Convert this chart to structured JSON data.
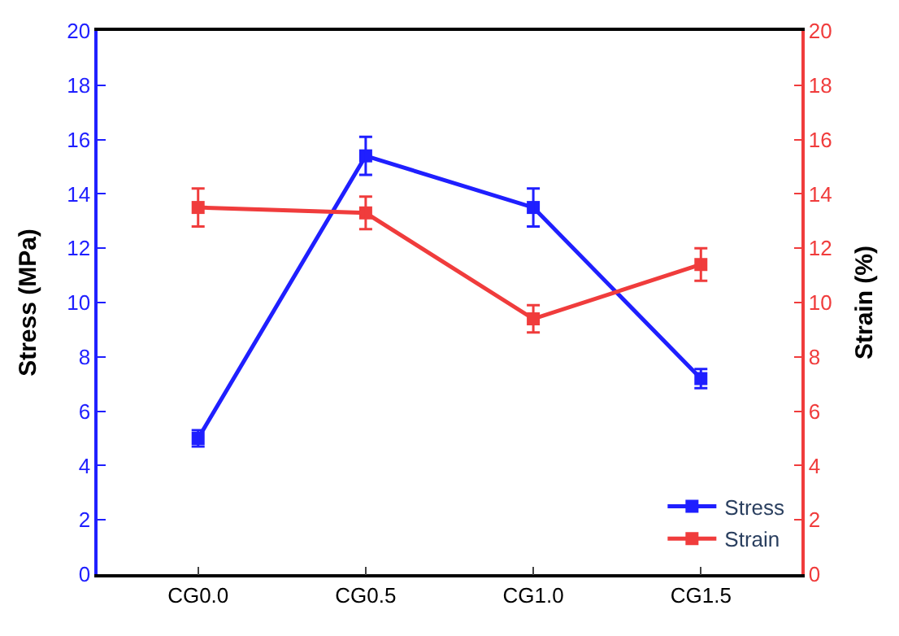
{
  "chart_data": {
    "type": "line",
    "categories": [
      "CG0.0",
      "CG0.5",
      "CG1.0",
      "CG1.5"
    ],
    "ylabel": "Stress (MPa)",
    "y2label": "Strain (%)",
    "ylim": [
      0,
      20
    ],
    "yticks": [
      0,
      2,
      4,
      6,
      8,
      10,
      12,
      14,
      16,
      18,
      20
    ],
    "y2lim": [
      0,
      20
    ],
    "y2ticks": [
      0,
      2,
      4,
      6,
      8,
      10,
      12,
      14,
      16,
      18,
      20
    ],
    "series": [
      {
        "name": "Stress",
        "color": "#1f1fff",
        "values": [
          5.0,
          15.4,
          13.5,
          7.2
        ],
        "errors": [
          0.3,
          0.7,
          0.7,
          0.35
        ]
      },
      {
        "name": "Strain",
        "color": "#f03c3c",
        "axis": "y2",
        "values": [
          13.5,
          13.3,
          9.4,
          11.4
        ],
        "errors": [
          0.7,
          0.6,
          0.5,
          0.6
        ]
      }
    ],
    "marker": "square",
    "line_style": "solid",
    "legend": "bottom right"
  }
}
